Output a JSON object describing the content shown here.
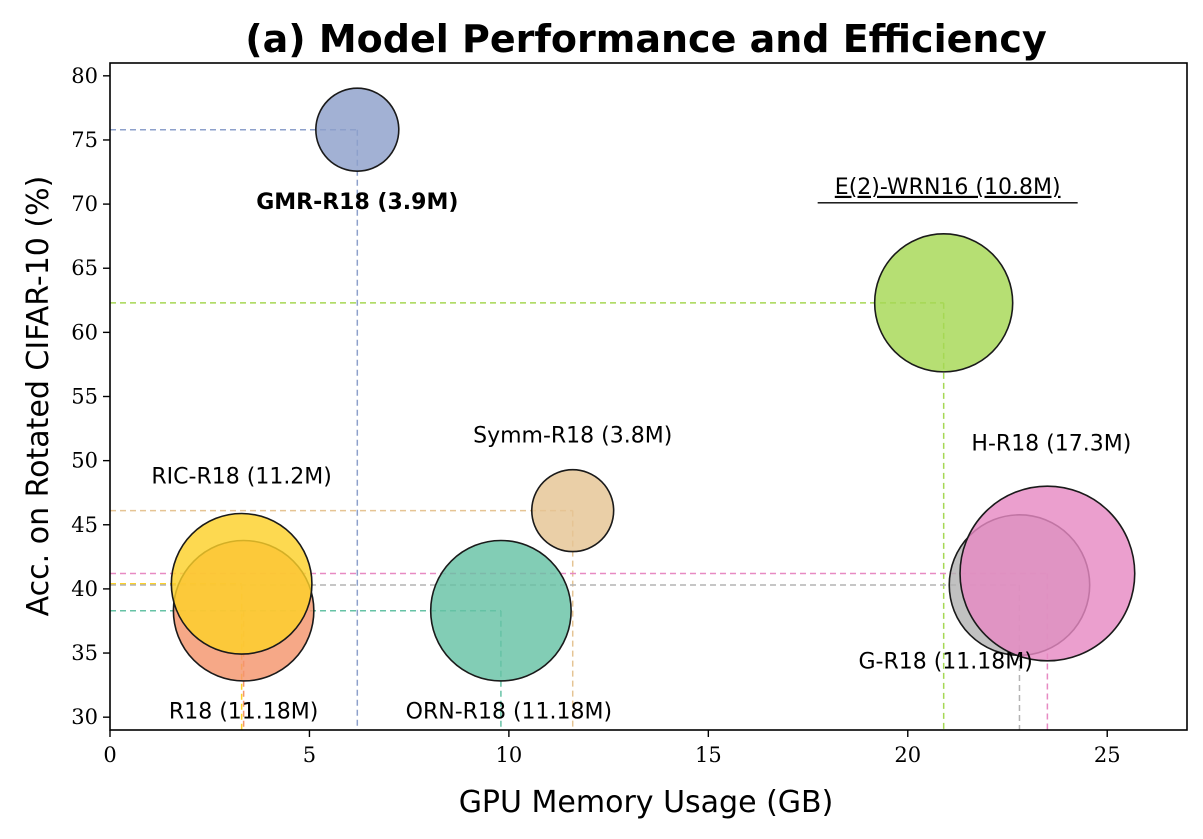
{
  "chart_data": {
    "type": "scatter",
    "title": "(a) Model Performance and Efficiency",
    "xlabel": "GPU Memory Usage (GB)",
    "ylabel": "Acc. on Rotated CIFAR-10 (%)",
    "xlim": [
      0,
      27
    ],
    "ylim": [
      29,
      81
    ],
    "xticks": [
      0,
      5,
      10,
      15,
      20,
      25
    ],
    "yticks": [
      30,
      35,
      40,
      45,
      50,
      55,
      60,
      65,
      70,
      75,
      80
    ],
    "series": [
      {
        "name": "R18 (11.18M)",
        "label": "R18 (11.18M)",
        "x": 3.35,
        "y": 38.3,
        "params_m": 11.18,
        "color": "#f4956c",
        "label_weight": "normal",
        "underline": false
      },
      {
        "name": "RIC-R18 (11.2M)",
        "label": "RIC-R18 (11.2M)",
        "x": 3.3,
        "y": 40.4,
        "params_m": 11.2,
        "color": "#fcd12a",
        "label_weight": "normal",
        "underline": false
      },
      {
        "name": "GMR-R18 (3.9M)",
        "label": "GMR-R18 (3.9M)",
        "x": 6.2,
        "y": 75.8,
        "params_m": 3.9,
        "color": "#8da0cb",
        "label_weight": "bold",
        "underline": false
      },
      {
        "name": "ORN-R18 (11.18M)",
        "label": "ORN-R18 (11.18M)",
        "x": 9.8,
        "y": 38.3,
        "params_m": 11.18,
        "color": "#66c2a5",
        "label_weight": "normal",
        "underline": false
      },
      {
        "name": "Symm-R18 (3.8M)",
        "label": "Symm-R18 (3.8M)",
        "x": 11.6,
        "y": 46.1,
        "params_m": 3.8,
        "color": "#e5c494",
        "label_weight": "normal",
        "underline": false
      },
      {
        "name": "E(2)-WRN16 (10.8M)",
        "label": "E(2)-WRN16 (10.8M)",
        "x": 20.9,
        "y": 62.3,
        "params_m": 10.8,
        "color": "#a6d854",
        "label_weight": "normal",
        "underline": true
      },
      {
        "name": "G-R18 (11.18M)",
        "label": "G-R18 (11.18M)",
        "x": 22.8,
        "y": 40.3,
        "params_m": 11.18,
        "color": "#b3b3b3",
        "label_weight": "normal",
        "underline": false
      },
      {
        "name": "H-R18 (17.3M)",
        "label": "H-R18 (17.3M)",
        "x": 23.5,
        "y": 41.2,
        "params_m": 17.3,
        "color": "#e78ac3",
        "label_weight": "normal",
        "underline": false
      }
    ],
    "grid": false,
    "legend": "none"
  }
}
